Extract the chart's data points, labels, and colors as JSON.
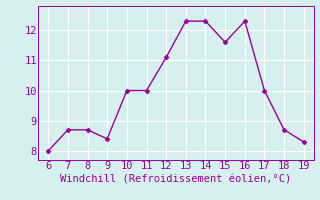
{
  "x": [
    6,
    7,
    8,
    9,
    10,
    11,
    12,
    13,
    14,
    15,
    16,
    17,
    18,
    19
  ],
  "y": [
    8.0,
    8.7,
    8.7,
    8.4,
    10.0,
    10.0,
    11.1,
    12.3,
    12.3,
    11.6,
    12.3,
    10.0,
    8.7,
    8.3
  ],
  "line_color": "#990099",
  "marker": "D",
  "marker_size": 2.5,
  "linewidth": 1.0,
  "xlabel": "Windchill (Refroidissement éolien,°C)",
  "xlabel_fontsize": 7.5,
  "xlim": [
    5.5,
    19.5
  ],
  "ylim": [
    7.7,
    12.8
  ],
  "xticks": [
    6,
    7,
    8,
    9,
    10,
    11,
    12,
    13,
    14,
    15,
    16,
    17,
    18,
    19
  ],
  "yticks": [
    8,
    9,
    10,
    11,
    12
  ],
  "tick_fontsize": 7.5,
  "bg_color": "#d6f0ee",
  "grid_color": "#ffffff",
  "grid_linewidth": 0.8
}
